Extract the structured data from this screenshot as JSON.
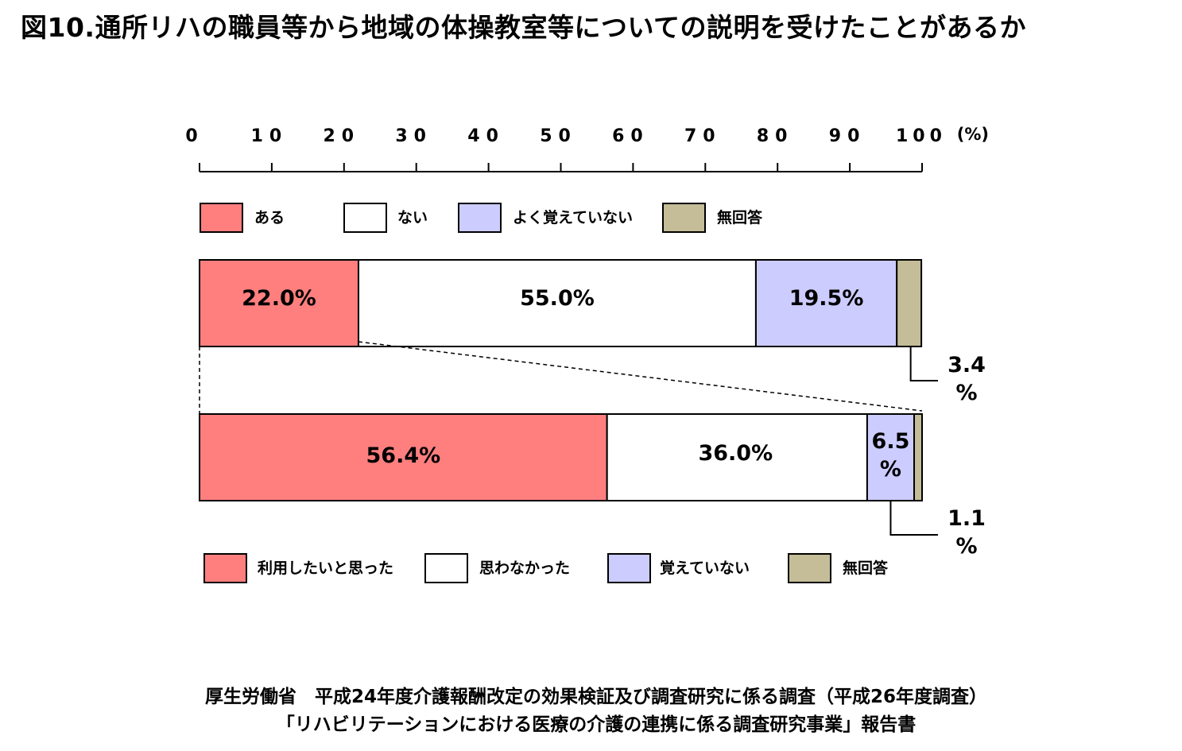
{
  "title": "図10.通所リハの職員等から地域の体操教室等についての説明を受けたことがあるか",
  "source": {
    "line1": "厚生労働省　平成24年度介護報酬改定の効果検証及び調査研究に係る調査（平成26年度調査）",
    "line2": "「リハビリテーションにおける医療の介護の連携に係る調査研究事業」報告書"
  },
  "chart_data": [
    {
      "type": "bar",
      "orientation": "horizontal-stacked-100",
      "axis": {
        "ticks": [
          "0",
          "10",
          "20",
          "30",
          "40",
          "50",
          "60",
          "70",
          "80",
          "90",
          "100"
        ],
        "unit": "(%)",
        "xlim": [
          0,
          100
        ]
      },
      "categories": [
        "ある",
        "ない",
        "よく覚えていない",
        "無回答"
      ],
      "values": [
        22.0,
        55.0,
        19.5,
        3.4
      ],
      "labels": [
        "22.0%",
        "55.0%",
        "19.5%",
        "3.4\n%"
      ],
      "colors": [
        "#FF7F7F",
        "#FFFFFF",
        "#CCCCFF",
        "#C4BD97"
      ]
    },
    {
      "type": "bar",
      "orientation": "horizontal-stacked-100",
      "categories": [
        "利用したいと思った",
        "思わなかった",
        "覚えていない",
        "無回答"
      ],
      "values": [
        56.4,
        36.0,
        6.5,
        1.1
      ],
      "labels": [
        "56.4%",
        "36.0%",
        "6.5\n%",
        "1.1\n%"
      ],
      "colors": [
        "#FF7F7F",
        "#FFFFFF",
        "#CCCCFF",
        "#C4BD97"
      ]
    }
  ]
}
